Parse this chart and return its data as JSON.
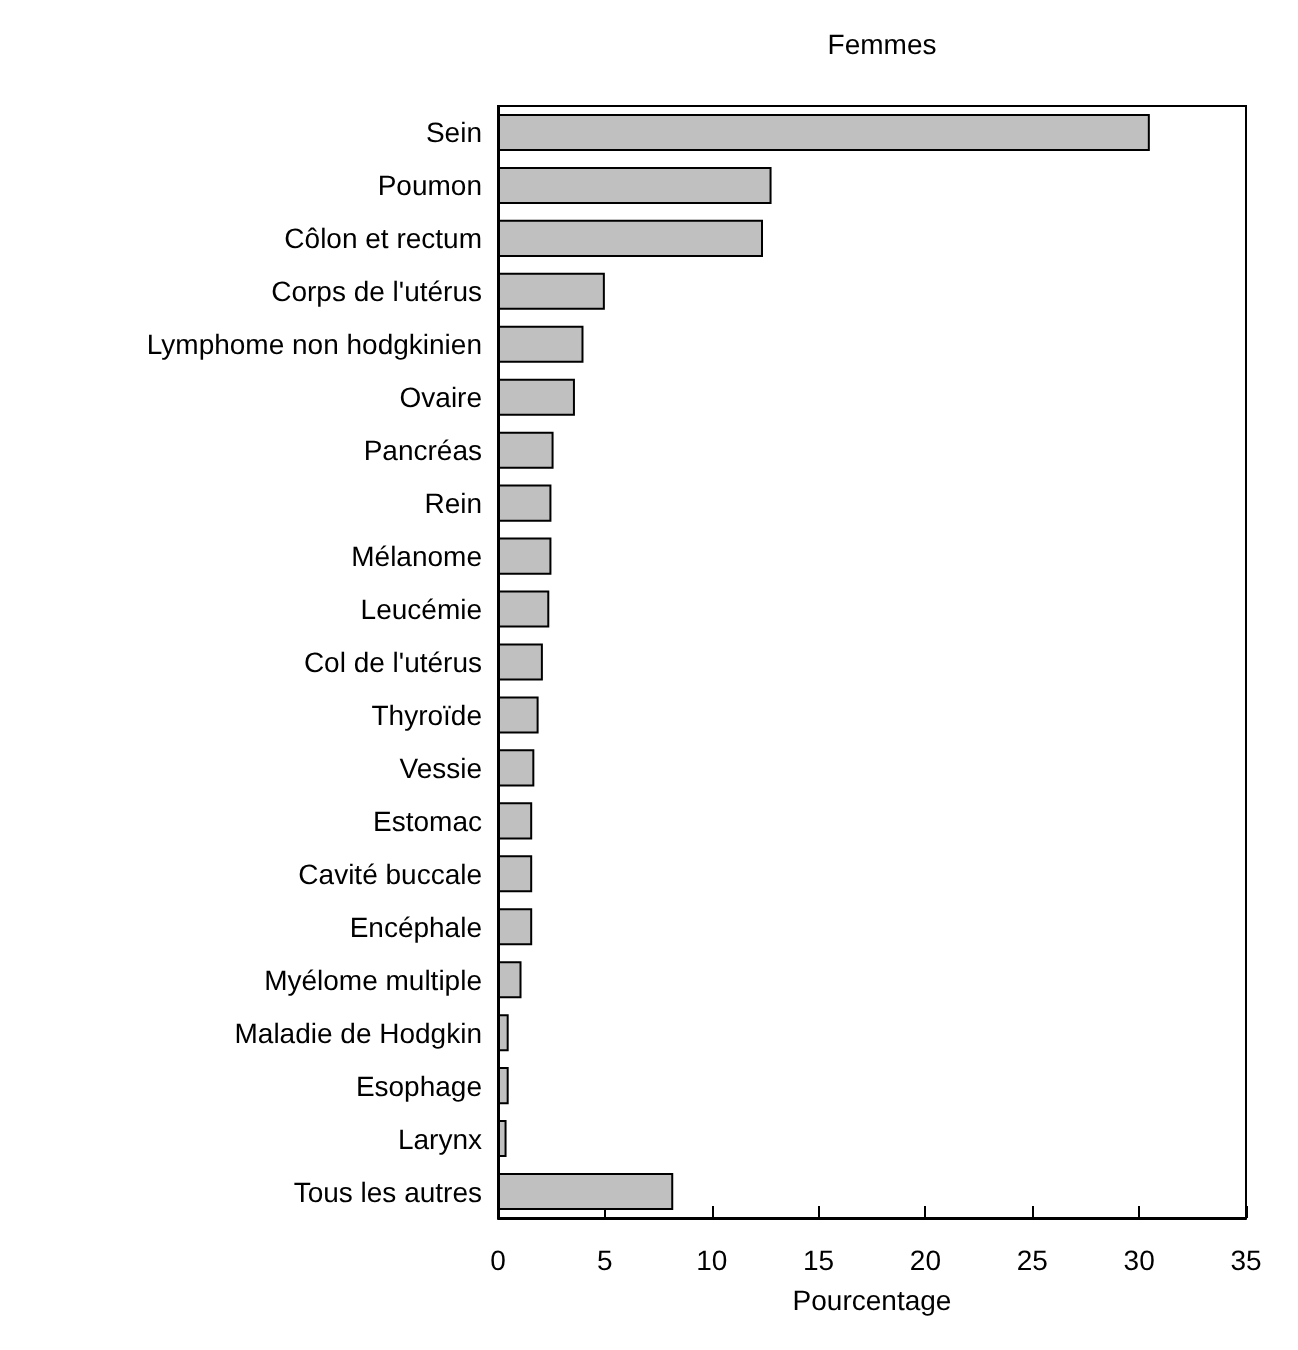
{
  "chart_data": {
    "type": "bar",
    "orientation": "horizontal",
    "title": "Femmes",
    "xlabel": "Pourcentage",
    "categories": [
      "Sein",
      "Poumon",
      "Côlon et rectum",
      "Corps de l'utérus",
      "Lymphome non hodgkinien",
      "Ovaire",
      "Pancréas",
      "Rein",
      "Mélanome",
      "Leucémie",
      "Col de l'utérus",
      "Thyroïde",
      "Vessie",
      "Estomac",
      "Cavité buccale",
      "Encéphale",
      "Myélome multiple",
      "Maladie de Hodgkin",
      "Esophage",
      "Larynx",
      "Tous les autres"
    ],
    "values": [
      30.5,
      12.8,
      12.4,
      5.0,
      4.0,
      3.6,
      2.6,
      2.5,
      2.5,
      2.4,
      2.1,
      1.9,
      1.7,
      1.6,
      1.6,
      1.6,
      1.1,
      0.5,
      0.5,
      0.4,
      8.2
    ],
    "color": "#c0c0c0",
    "xlim": [
      0,
      35
    ],
    "xticks": [
      0,
      5,
      10,
      15,
      20,
      25,
      30,
      35
    ],
    "grid": false
  }
}
